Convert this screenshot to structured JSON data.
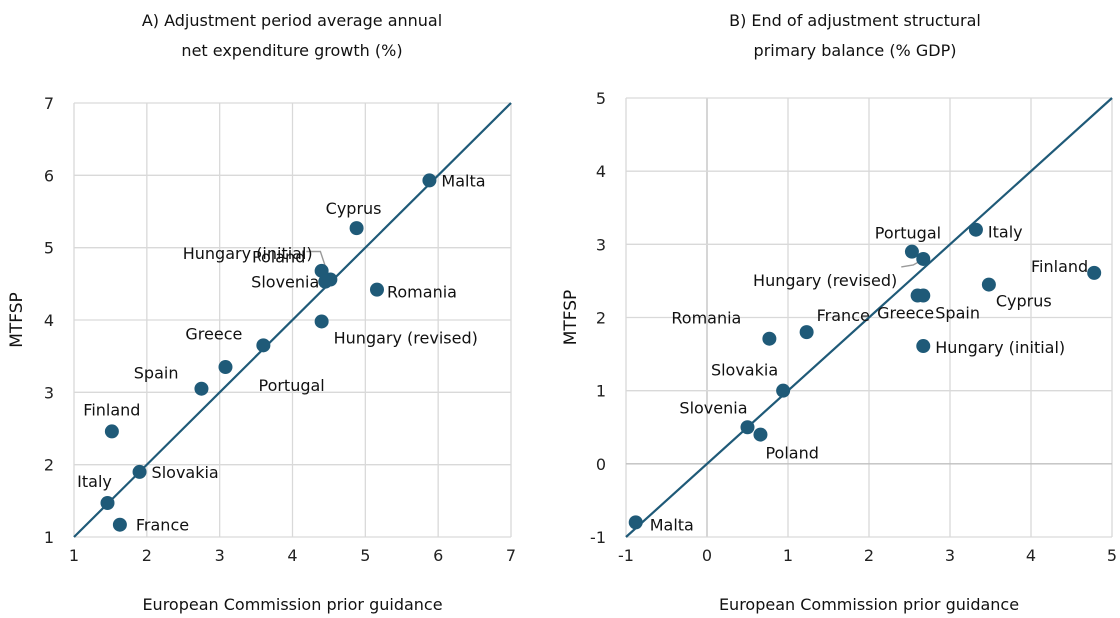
{
  "figure": {
    "point_color": "#1f5a78",
    "line_color": "#1f5a78",
    "grid_color": "#d9d9d9"
  },
  "chart_data": [
    {
      "type": "scatter",
      "title": "A) Adjustment period average annual net expenditure growth (%)",
      "title_lines": [
        "A) Adjustment period average annual",
        "net expenditure growth (%)"
      ],
      "xlabel": "European Commission prior guidance",
      "ylabel": "MTFSP",
      "xlim": [
        1,
        7
      ],
      "ylim": [
        1,
        7
      ],
      "xticks": [
        1,
        2,
        3,
        4,
        5,
        6,
        7
      ],
      "yticks": [
        1,
        2,
        3,
        4,
        5,
        6,
        7
      ],
      "reference_line": "45-degree",
      "grid": true,
      "points": [
        {
          "label": "Malta",
          "x": 5.88,
          "y": 5.93
        },
        {
          "label": "Cyprus",
          "x": 4.88,
          "y": 5.27
        },
        {
          "label": "Poland",
          "x": 4.52,
          "y": 4.56
        },
        {
          "label": "Hungary (initial)",
          "x": 4.4,
          "y": 4.68
        },
        {
          "label": "Slovenia",
          "x": 4.45,
          "y": 4.53
        },
        {
          "label": "Romania",
          "x": 5.16,
          "y": 4.42
        },
        {
          "label": "Hungary (revised)",
          "x": 4.4,
          "y": 3.98
        },
        {
          "label": "Greece",
          "x": 3.6,
          "y": 3.65
        },
        {
          "label": "Portugal",
          "x": 3.08,
          "y": 3.35
        },
        {
          "label": "Spain",
          "x": 2.75,
          "y": 3.05
        },
        {
          "label": "Finland",
          "x": 1.52,
          "y": 2.46
        },
        {
          "label": "Slovakia",
          "x": 1.9,
          "y": 1.9
        },
        {
          "label": "Italy",
          "x": 1.46,
          "y": 1.47
        },
        {
          "label": "France",
          "x": 1.63,
          "y": 1.17
        }
      ]
    },
    {
      "type": "scatter",
      "title": "B) End of adjustment structural primary balance (% GDP)",
      "title_lines": [
        "B) End of adjustment structural",
        "primary balance (% GDP)"
      ],
      "xlabel": "European Commission prior guidance",
      "ylabel": "MTFSP",
      "xlim": [
        -1,
        5
      ],
      "ylim": [
        -1,
        5
      ],
      "xticks": [
        -1,
        0,
        1,
        2,
        3,
        4,
        5
      ],
      "yticks": [
        -1,
        0,
        1,
        2,
        3,
        4,
        5
      ],
      "reference_line": "45-degree",
      "grid": true,
      "points": [
        {
          "label": "Italy",
          "x": 3.32,
          "y": 3.2
        },
        {
          "label": "Portugal",
          "x": 2.53,
          "y": 2.9
        },
        {
          "label": "Hungary (revised)",
          "x": 2.67,
          "y": 2.8
        },
        {
          "label": "Finland",
          "x": 4.78,
          "y": 2.61
        },
        {
          "label": "Cyprus",
          "x": 3.48,
          "y": 2.45
        },
        {
          "label": "Greece",
          "x": 2.6,
          "y": 2.3
        },
        {
          "label": "Spain",
          "x": 2.67,
          "y": 2.3
        },
        {
          "label": "France",
          "x": 1.23,
          "y": 1.8
        },
        {
          "label": "Romania",
          "x": 0.77,
          "y": 1.71
        },
        {
          "label": "Hungary (initial)",
          "x": 2.67,
          "y": 1.61
        },
        {
          "label": "Slovakia",
          "x": 0.94,
          "y": 1.0
        },
        {
          "label": "Slovenia",
          "x": 0.5,
          "y": 0.5
        },
        {
          "label": "Poland",
          "x": 0.66,
          "y": 0.4
        },
        {
          "label": "Malta",
          "x": -0.88,
          "y": -0.8
        }
      ]
    }
  ]
}
